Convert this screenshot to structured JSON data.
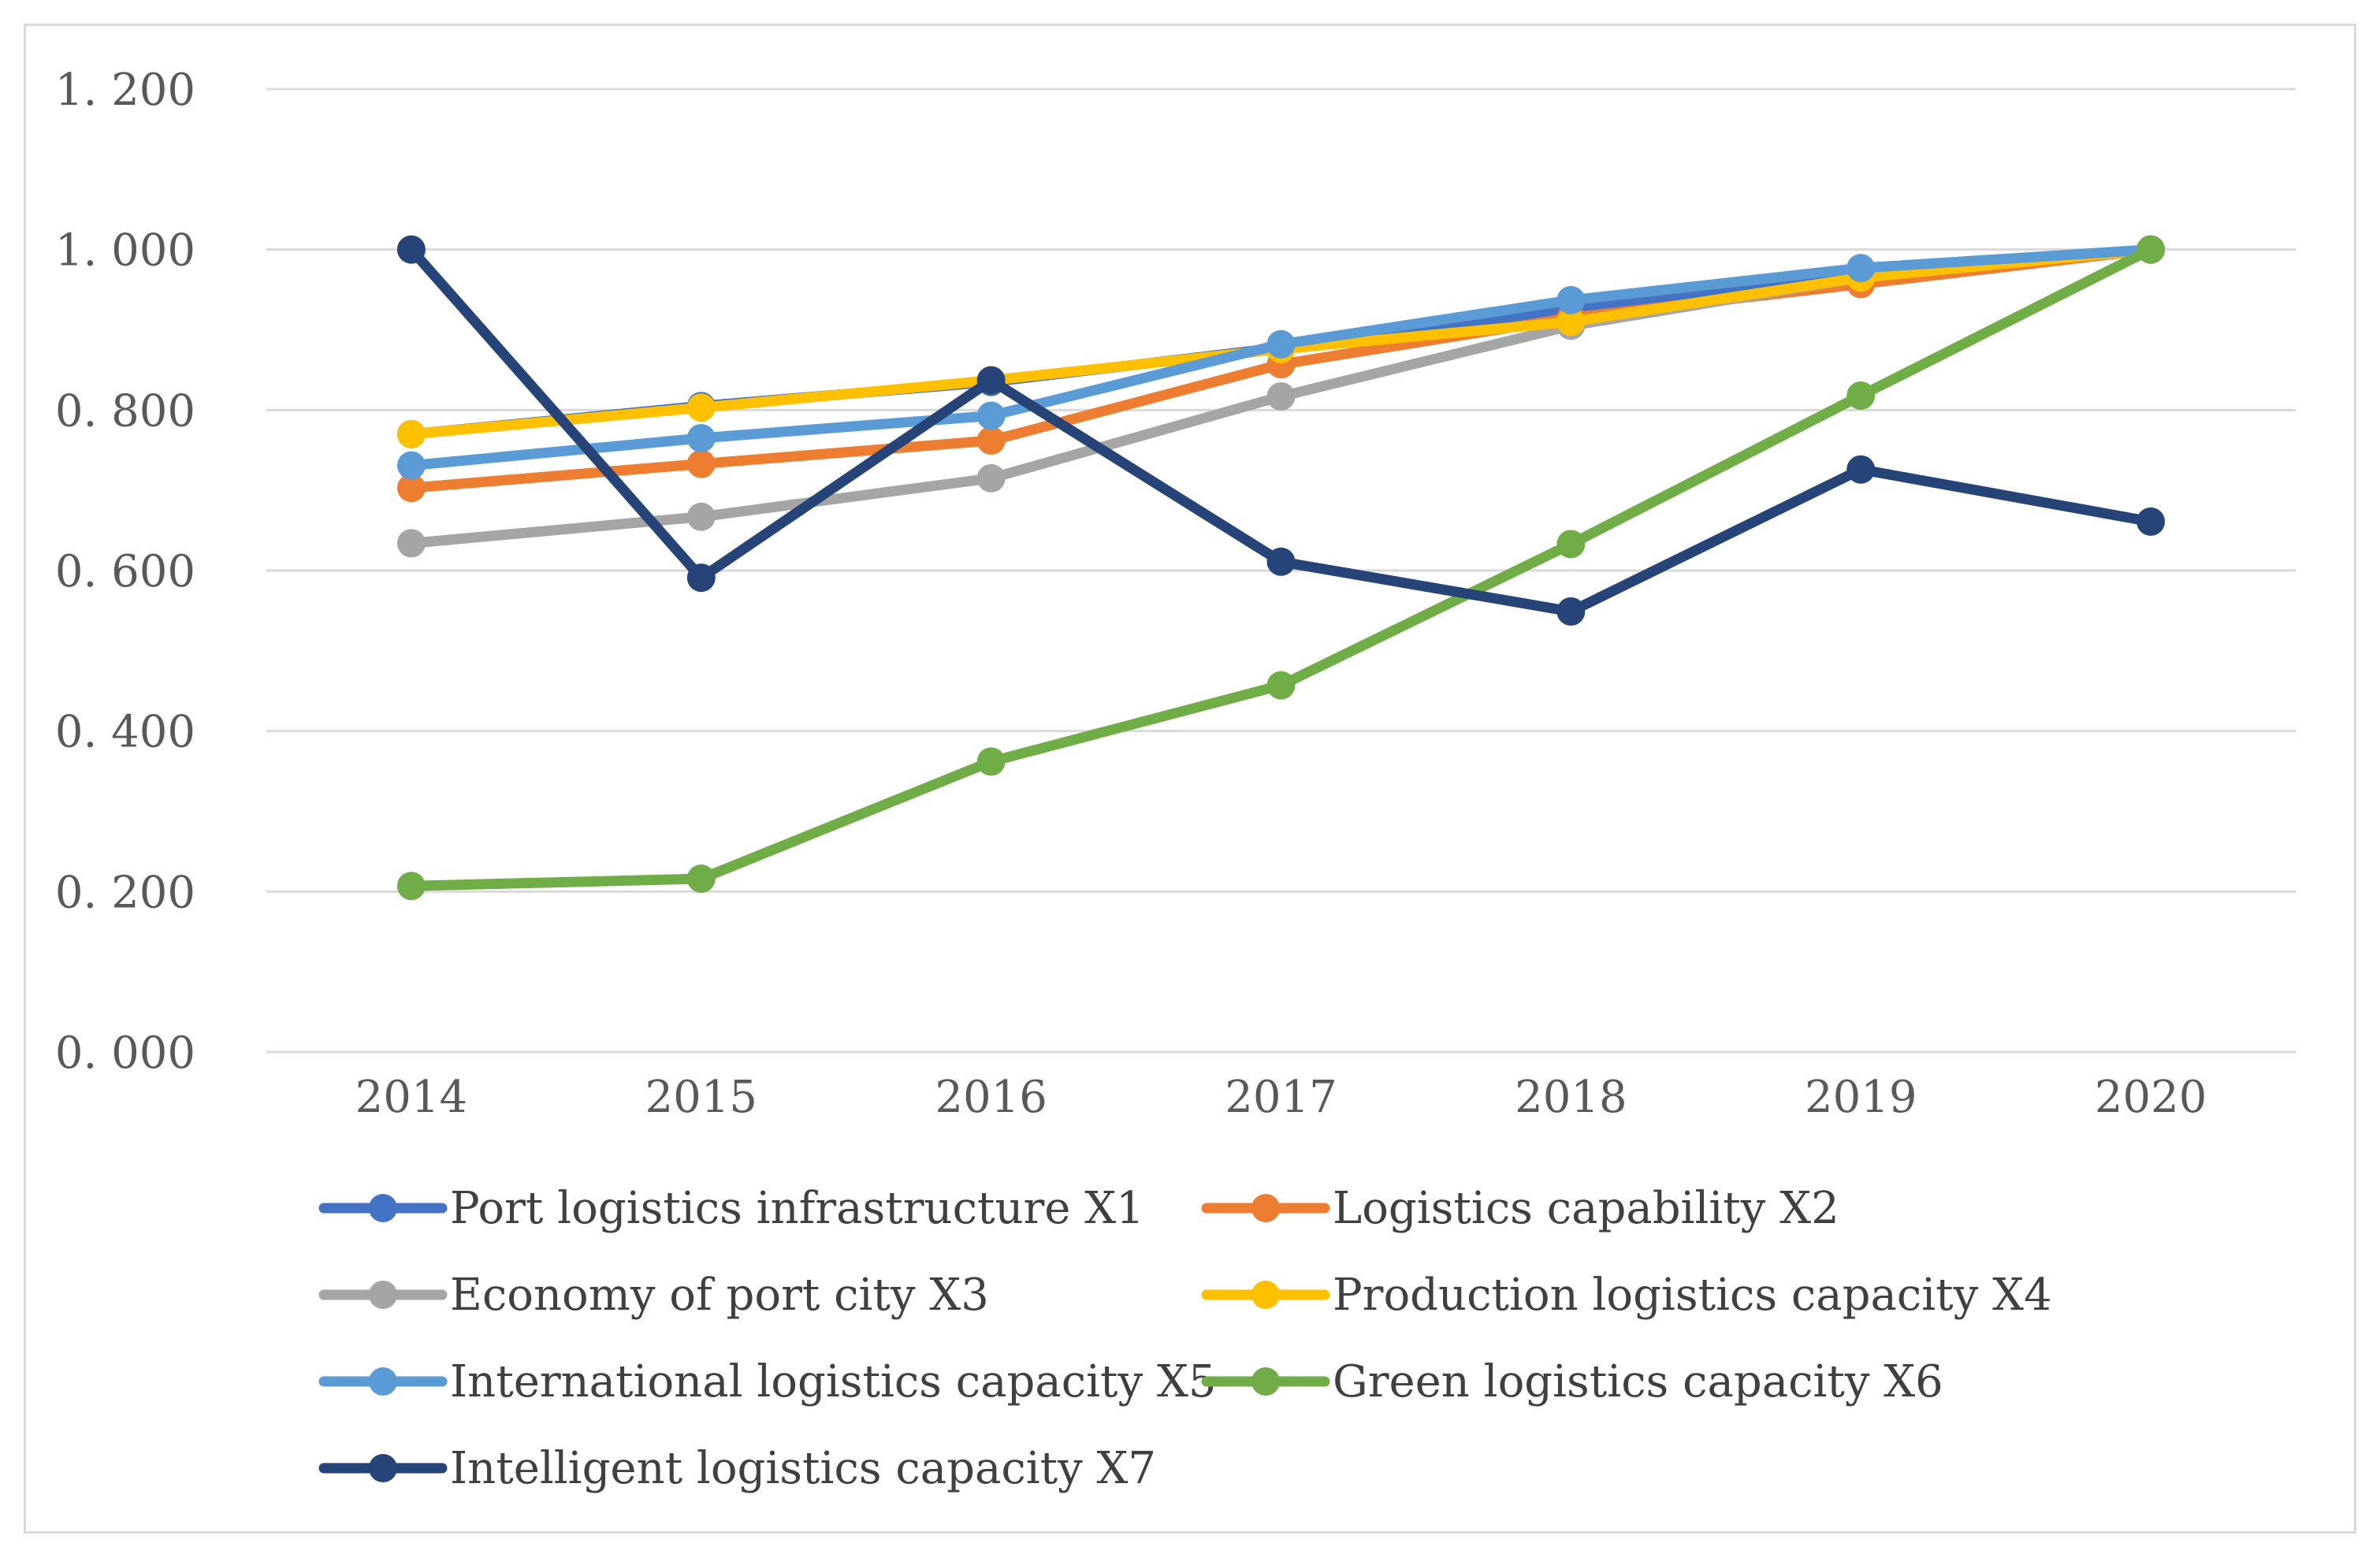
{
  "chart_data": {
    "type": "line",
    "title": "",
    "xlabel": "",
    "ylabel": "",
    "categories": [
      "2014",
      "2015",
      "2016",
      "2017",
      "2018",
      "2019",
      "2020"
    ],
    "ylim": [
      0,
      1.2
    ],
    "yticks": [
      0,
      0.2,
      0.4,
      0.6,
      0.8,
      1.0,
      1.2
    ],
    "ytick_labels": [
      "0. 000",
      "0. 200",
      "0. 400",
      "0. 600",
      "0. 800",
      "1. 000",
      "1. 200"
    ],
    "grid": true,
    "legend_position": "bottom",
    "series": [
      {
        "name": "Port logistics infrastructure X1",
        "color": "#4472C4",
        "values": [
          0.77,
          0.805,
          0.835,
          0.878,
          0.925,
          0.97,
          1.0
        ]
      },
      {
        "name": "Logistics capability  X2",
        "color": "#ED7D31",
        "values": [
          0.703,
          0.733,
          0.762,
          0.857,
          0.915,
          0.957,
          1.0
        ]
      },
      {
        "name": "Economy of port city X3",
        "color": "#A5A5A5",
        "values": [
          0.634,
          0.667,
          0.715,
          0.817,
          0.905,
          0.965,
          1.0
        ]
      },
      {
        "name": "Production logistics capacity X4",
        "color": "#FFC000",
        "values": [
          0.77,
          0.803,
          0.837,
          0.876,
          0.91,
          0.965,
          1.0
        ]
      },
      {
        "name": "International logistics capacity X5",
        "color": "#5B9BD5",
        "values": [
          0.731,
          0.765,
          0.793,
          0.882,
          0.937,
          0.977,
          1.0
        ]
      },
      {
        "name": "Green logistics capacity X6",
        "color": "#70AD47",
        "values": [
          0.207,
          0.216,
          0.362,
          0.457,
          0.633,
          0.818,
          1.0
        ]
      },
      {
        "name": "Intelligent logistics capacity X7",
        "color": "#264478",
        "values": [
          1.0,
          0.591,
          0.837,
          0.611,
          0.549,
          0.726,
          0.661
        ]
      }
    ]
  }
}
